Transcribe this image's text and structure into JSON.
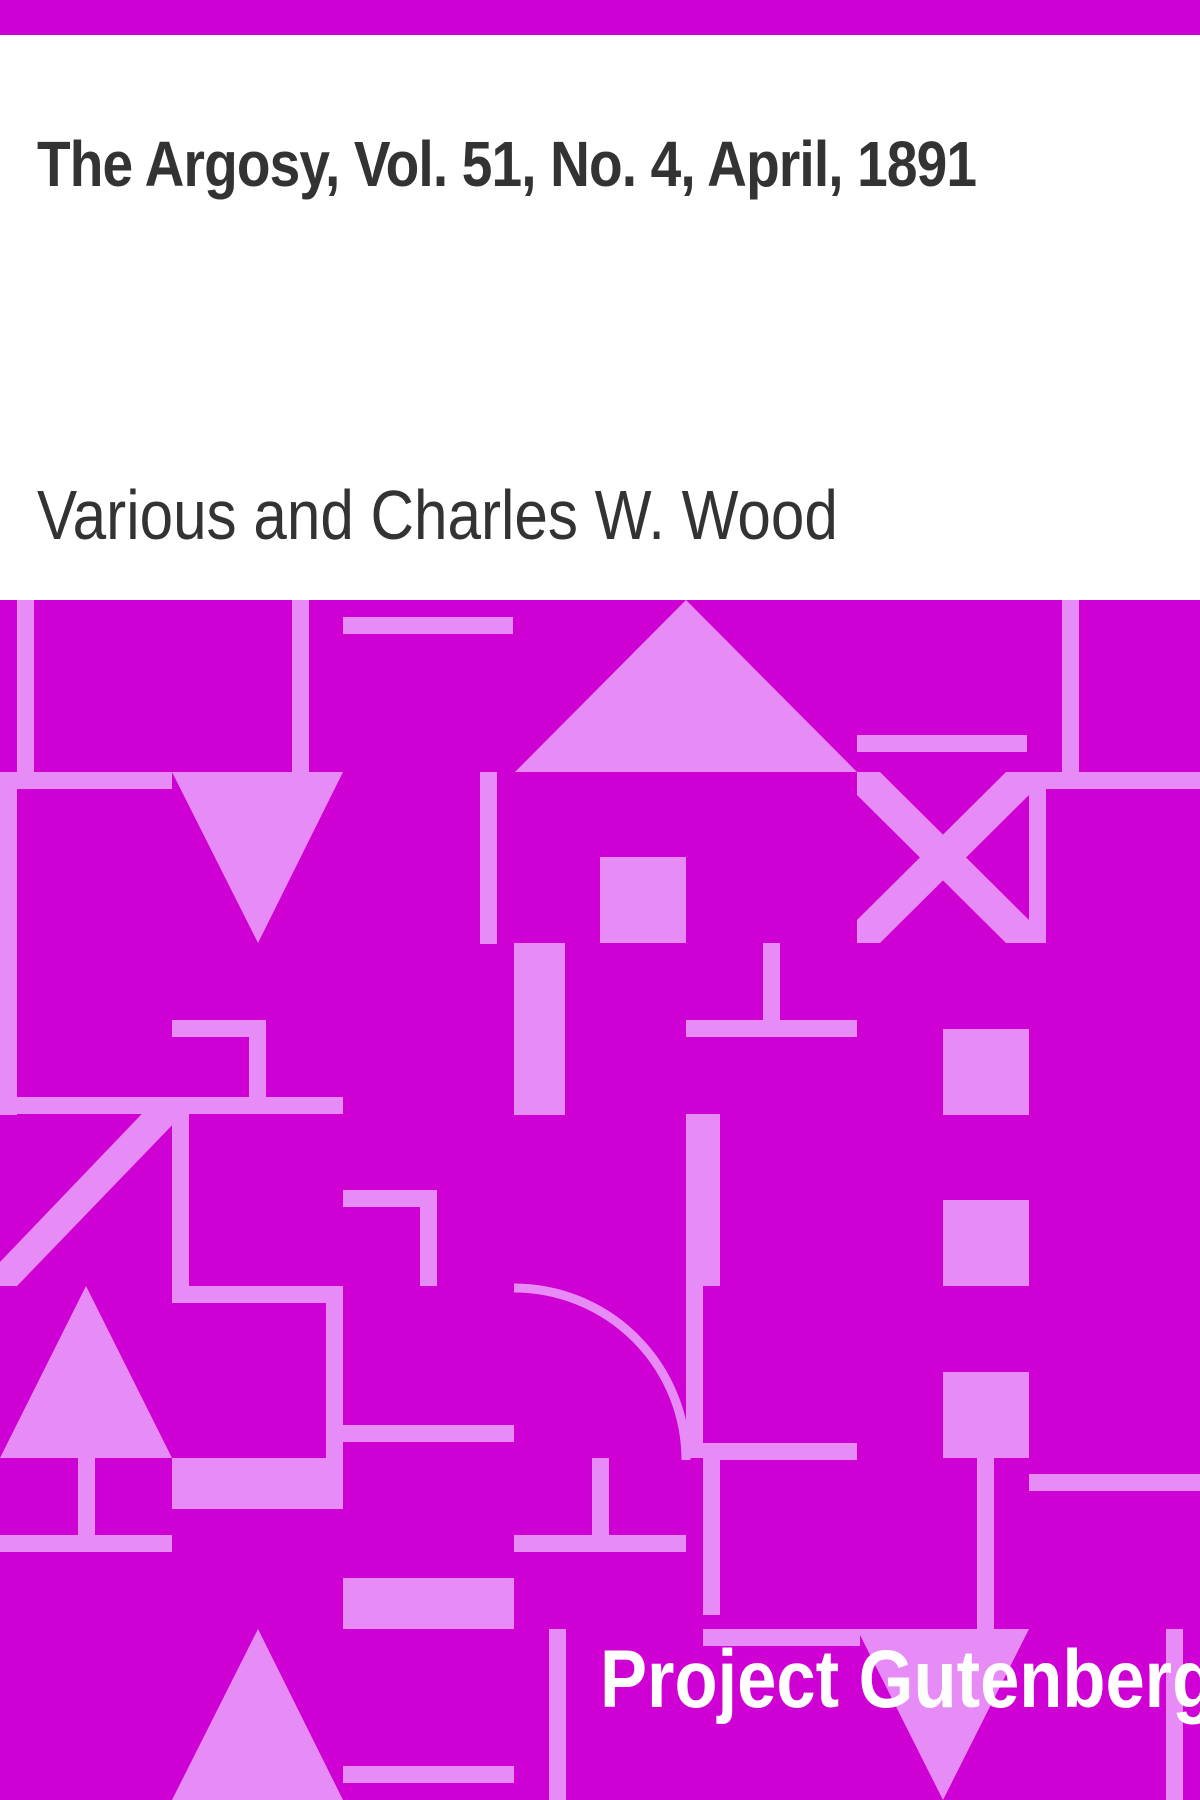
{
  "book": {
    "title": "The Argosy, Vol. 51, No. 4, April, 1891",
    "author": "Various and Charles W. Wood",
    "publisher": "Project Gutenberg"
  },
  "colors": {
    "band": "#cf00d3",
    "pattern_background": "#cf00d3",
    "pattern_shapes": "#e78cf7",
    "text": "#333333",
    "publisher_text": "#ffffff"
  }
}
